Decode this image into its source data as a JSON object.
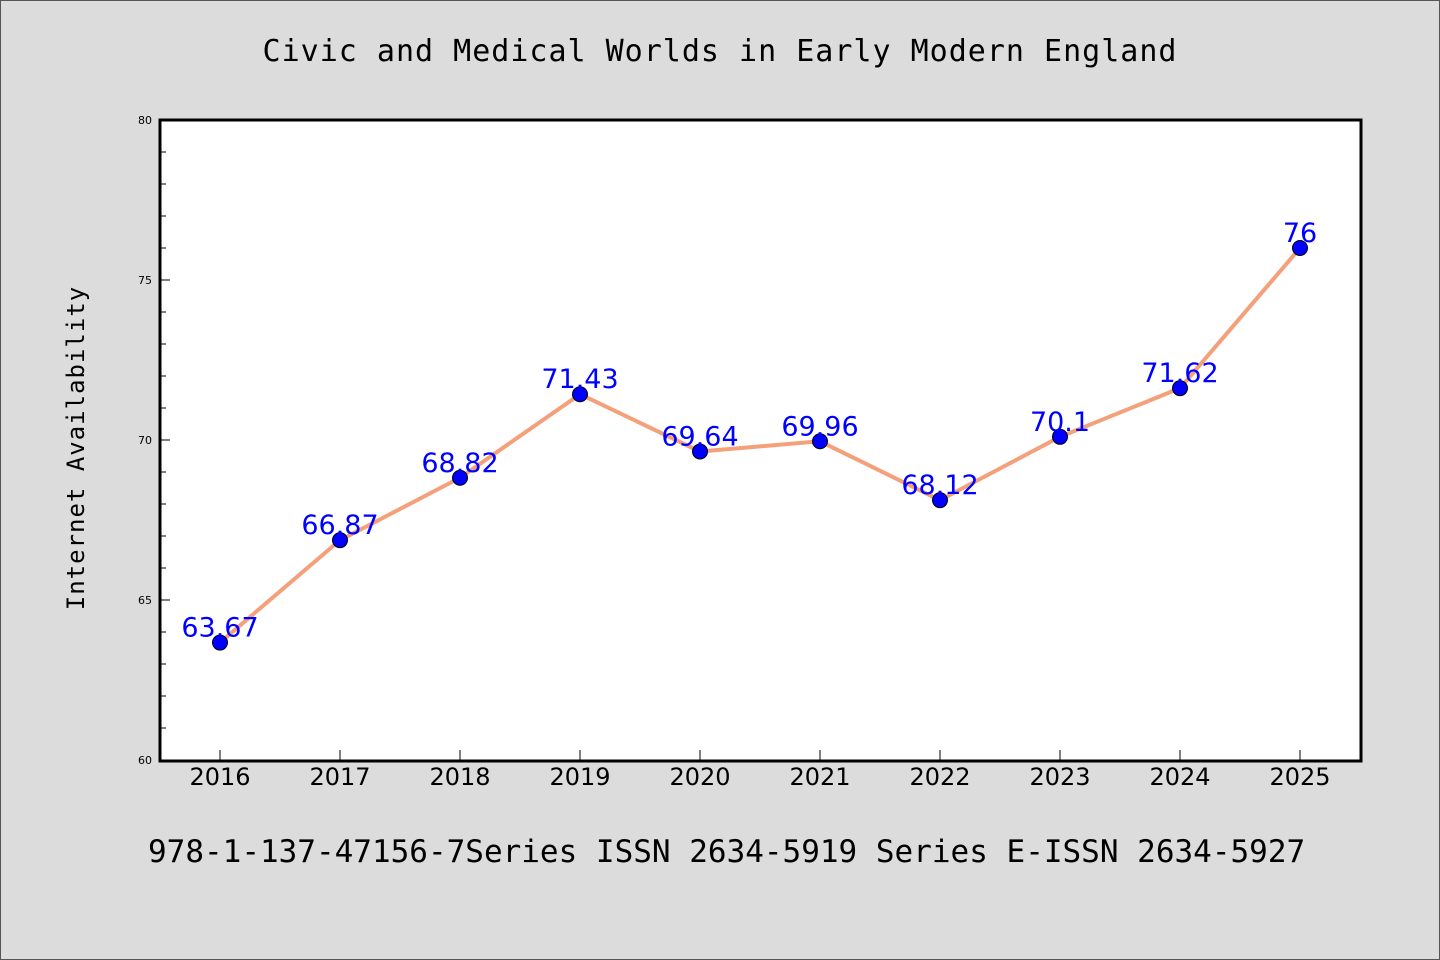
{
  "chart_data": {
    "type": "line",
    "title": "Civic and Medical Worlds in Early Modern England",
    "xlabel": "",
    "ylabel": "Internet Availability",
    "categories": [
      "2016",
      "2017",
      "2018",
      "2019",
      "2020",
      "2021",
      "2022",
      "2023",
      "2024",
      "2025"
    ],
    "series": [
      {
        "values": [
          63.67,
          66.87,
          68.82,
          71.43,
          69.64,
          69.96,
          68.12,
          70.1,
          71.62,
          76
        ],
        "labels": [
          "63.67",
          "66.87",
          "68.82",
          "71.43",
          "69.64",
          "69.96",
          "68.12",
          "70.1",
          "71.62",
          "76"
        ]
      }
    ],
    "ylim": [
      60,
      80
    ],
    "yticks": [
      "60",
      "65",
      "70",
      "75",
      "80"
    ],
    "grid": false,
    "legend": "none",
    "colors": {
      "line": "#f4a07a",
      "marker": "#0000ff",
      "data_label": "#0000ff",
      "background": "#dcdcdc",
      "plot_background": "#ffffff"
    }
  },
  "footer": {
    "text": "978-1-137-47156-7Series ISSN 2634-5919 Series E-ISSN 2634-5927"
  }
}
